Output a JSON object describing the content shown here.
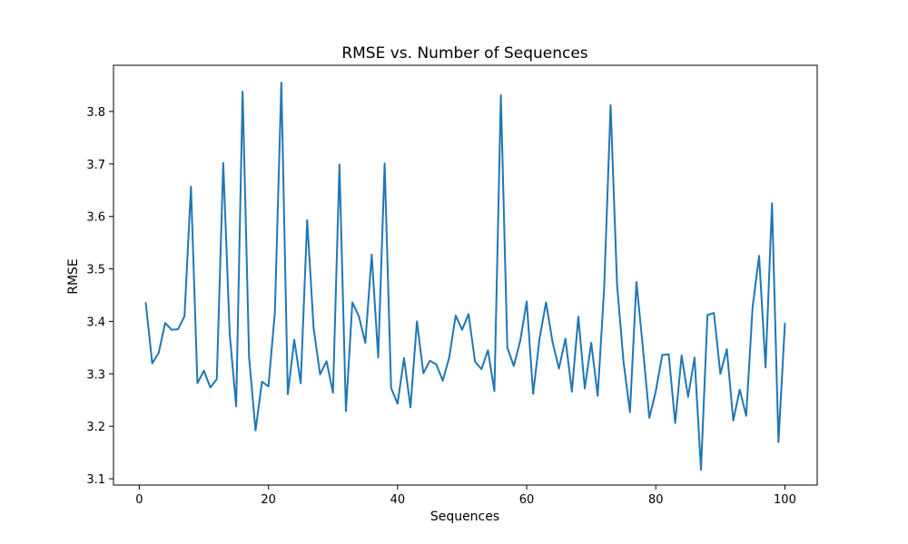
{
  "chart_data": {
    "type": "line",
    "title": "RMSE vs. Number of Sequences",
    "xlabel": "Sequences",
    "ylabel": "RMSE",
    "xlim": [
      -4,
      105
    ],
    "ylim": [
      3.088,
      3.888
    ],
    "xticks": [
      0,
      20,
      40,
      60,
      80,
      100
    ],
    "yticks": [
      3.1,
      3.2,
      3.3,
      3.4,
      3.5,
      3.6,
      3.7,
      3.8
    ],
    "grid": false,
    "series_color": "#1f77b4",
    "series": [
      {
        "x": [
          1,
          2,
          3,
          4,
          5,
          6,
          7,
          8,
          9,
          10,
          11,
          12,
          13,
          14,
          15,
          16,
          17,
          18,
          19,
          20,
          21,
          22,
          23,
          24,
          25,
          26,
          27,
          28,
          29,
          30,
          31,
          32,
          33,
          34,
          35,
          36,
          37,
          38,
          39,
          40,
          41,
          42,
          43,
          44,
          45,
          46,
          47,
          48,
          49,
          50,
          51,
          52,
          53,
          54,
          55,
          56,
          57,
          58,
          59,
          60,
          61,
          62,
          63,
          64,
          65,
          66,
          67,
          68,
          69,
          70,
          71,
          72,
          73,
          74,
          75,
          76,
          77,
          78,
          79,
          80,
          81,
          82,
          83,
          84,
          85,
          86,
          87,
          88,
          89,
          90,
          91,
          92,
          93,
          94,
          95,
          96,
          97,
          98,
          99,
          100
        ],
        "values": [
          3.435,
          3.32,
          3.34,
          3.397,
          3.384,
          3.385,
          3.41,
          3.657,
          3.282,
          3.306,
          3.274,
          3.29,
          3.702,
          3.376,
          3.238,
          3.838,
          3.332,
          3.192,
          3.285,
          3.276,
          3.418,
          3.855,
          3.261,
          3.365,
          3.282,
          3.593,
          3.387,
          3.299,
          3.324,
          3.264,
          3.699,
          3.229,
          3.436,
          3.41,
          3.359,
          3.527,
          3.331,
          3.701,
          3.273,
          3.243,
          3.33,
          3.236,
          3.4,
          3.301,
          3.325,
          3.318,
          3.287,
          3.331,
          3.411,
          3.384,
          3.414,
          3.323,
          3.309,
          3.345,
          3.267,
          3.831,
          3.35,
          3.315,
          3.363,
          3.438,
          3.262,
          3.368,
          3.436,
          3.361,
          3.31,
          3.367,
          3.266,
          3.409,
          3.272,
          3.359,
          3.258,
          3.463,
          3.812,
          3.47,
          3.323,
          3.227,
          3.475,
          3.35,
          3.216,
          3.267,
          3.336,
          3.337,
          3.206,
          3.335,
          3.256,
          3.331,
          3.117,
          3.412,
          3.416,
          3.3,
          3.347,
          3.211,
          3.27,
          3.22,
          3.428,
          3.525,
          3.312,
          3.625,
          3.17,
          3.396
        ]
      }
    ]
  }
}
